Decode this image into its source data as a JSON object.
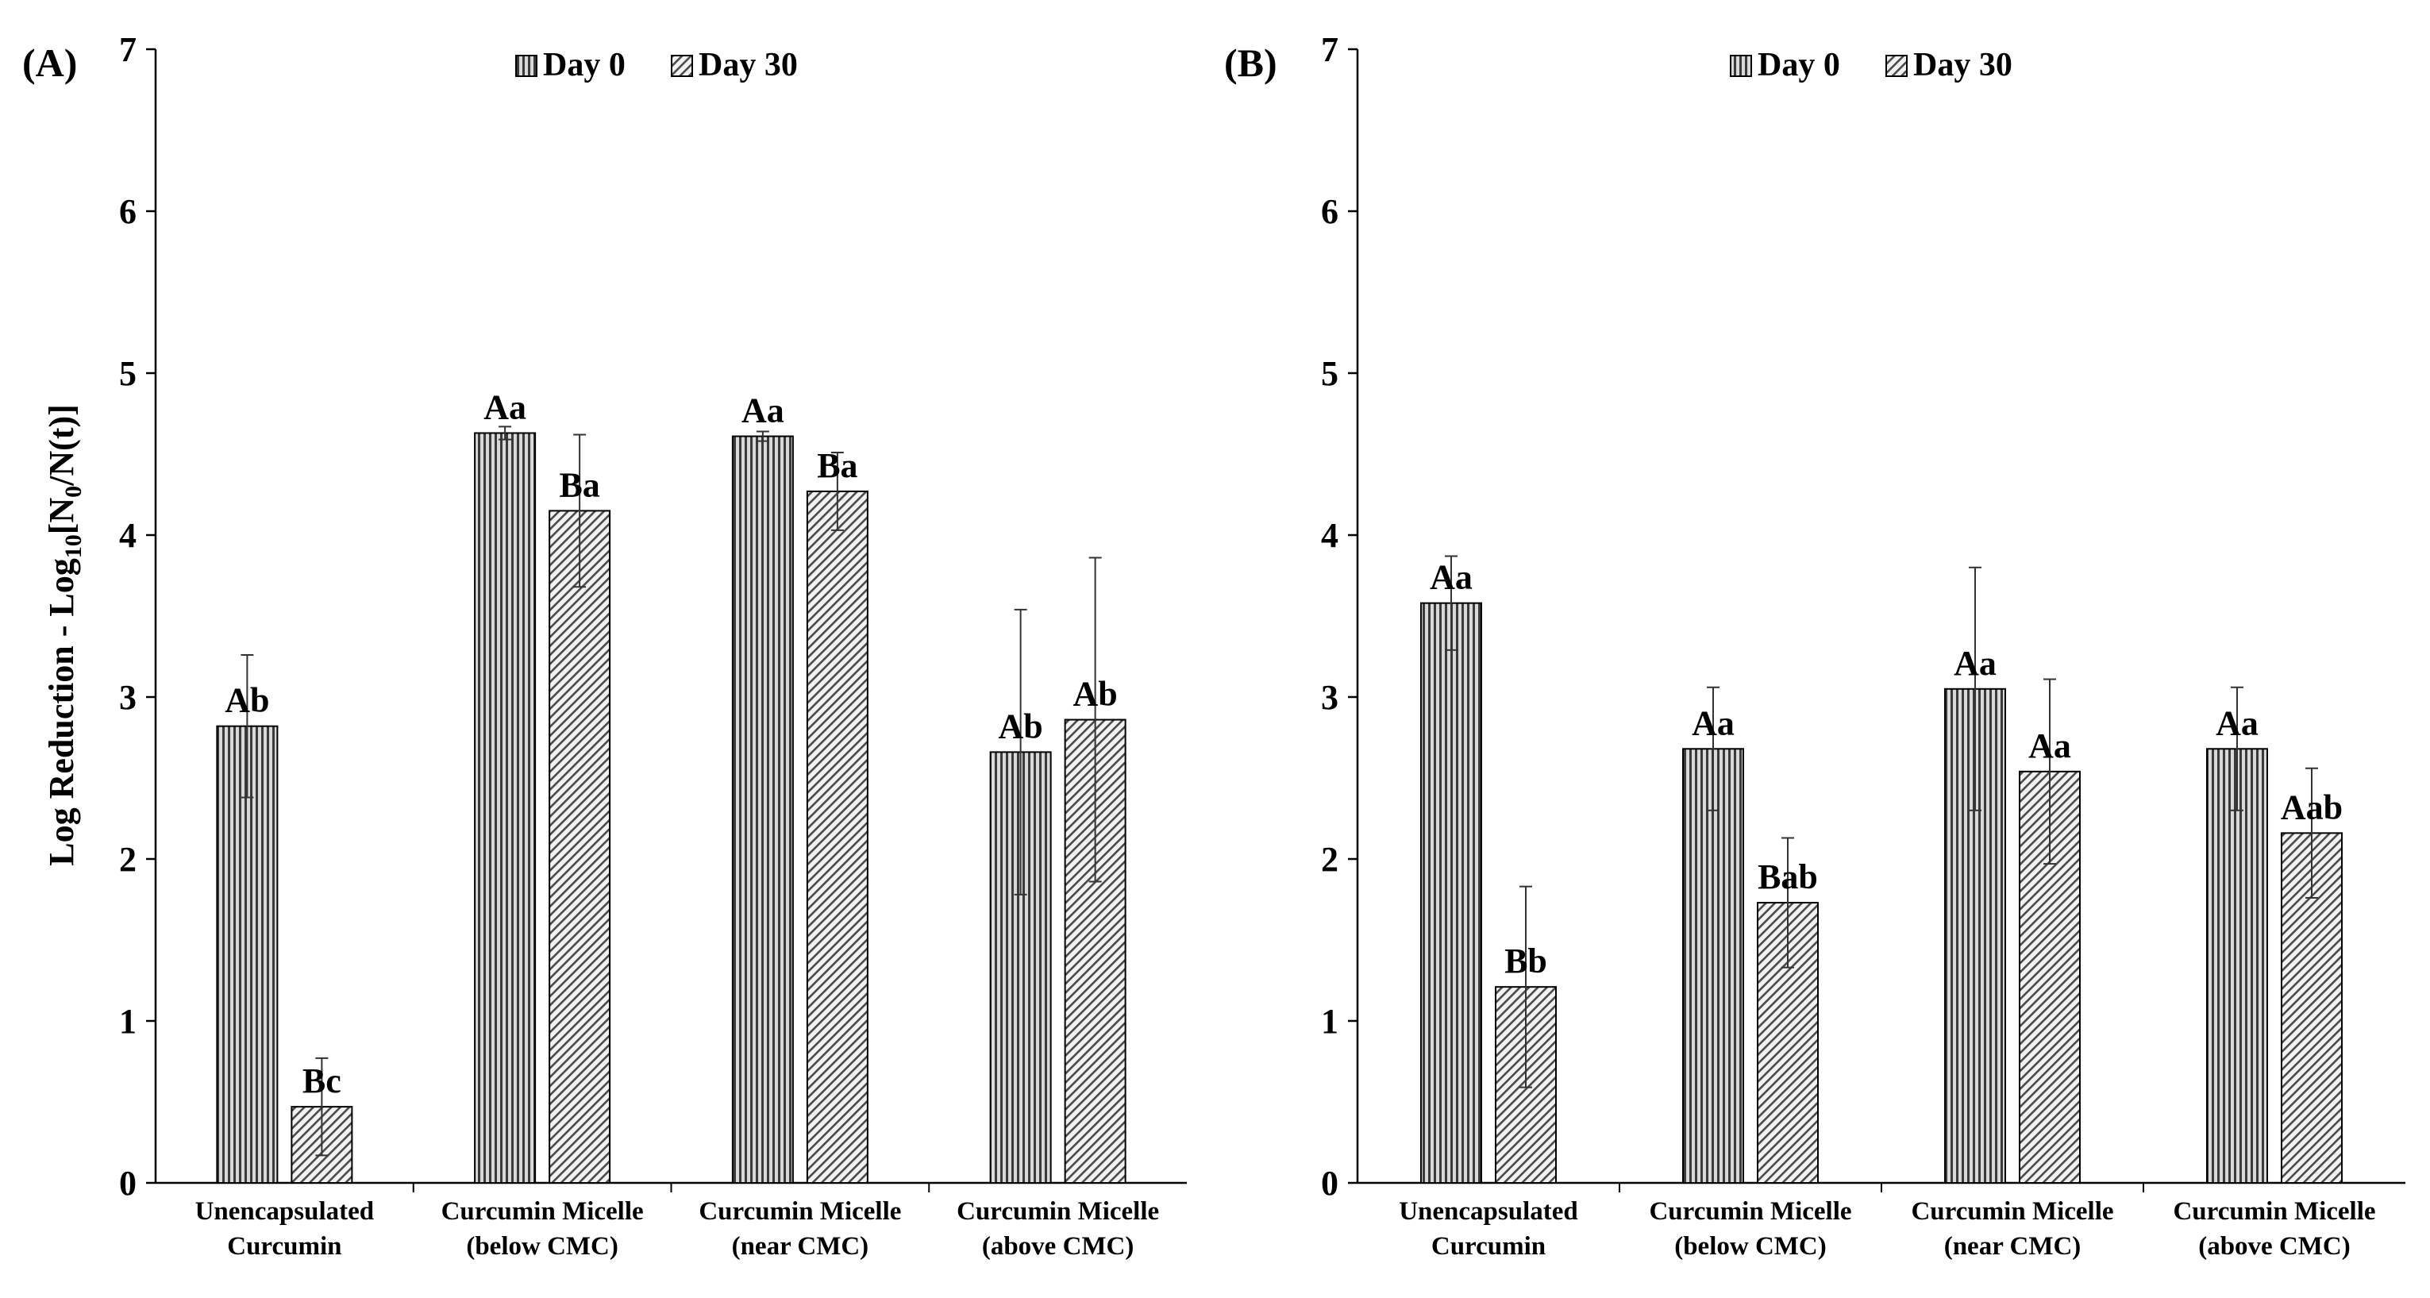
{
  "figure": {
    "ylabel": {
      "main": "Log Reduction - Log",
      "sub1": "10",
      "bracket_open": "[N",
      "sub2": "0",
      "rest": "/N(t)]"
    }
  },
  "chart_data": [
    {
      "type": "bar",
      "panel_label": "(A)",
      "categories": [
        [
          "Unencapsulated",
          "Curcumin"
        ],
        [
          "Curcumin Micelle",
          "(below CMC)"
        ],
        [
          "Curcumin Micelle",
          "(near CMC)"
        ],
        [
          "Curcumin Micelle",
          "(above CMC)"
        ]
      ],
      "series": [
        {
          "name": "Day 0",
          "pattern": "vertical",
          "values": [
            2.82,
            4.63,
            4.61,
            2.66
          ],
          "errors": [
            0.44,
            0.04,
            0.03,
            0.88
          ],
          "letters": [
            "Ab",
            "Aa",
            "Aa",
            "Ab"
          ]
        },
        {
          "name": "Day 30",
          "pattern": "diagonal",
          "values": [
            0.47,
            4.15,
            4.27,
            2.86
          ],
          "errors": [
            0.3,
            0.47,
            0.24,
            1.0
          ],
          "letters": [
            "Bc",
            "Ba",
            "Ba",
            "Ab"
          ]
        }
      ],
      "ylim": [
        0,
        7
      ],
      "yticks": [
        0,
        1,
        2,
        3,
        4,
        5,
        6,
        7
      ],
      "legend": "top-center"
    },
    {
      "type": "bar",
      "panel_label": "(B)",
      "categories": [
        [
          "Unencapsulated",
          "Curcumin"
        ],
        [
          "Curcumin Micelle",
          "(below CMC)"
        ],
        [
          "Curcumin Micelle",
          "(near CMC)"
        ],
        [
          "Curcumin Micelle",
          "(above CMC)"
        ]
      ],
      "series": [
        {
          "name": "Day 0",
          "pattern": "vertical",
          "values": [
            3.58,
            2.68,
            3.05,
            2.68
          ],
          "errors": [
            0.29,
            0.38,
            0.75,
            0.38
          ],
          "letters": [
            "Aa",
            "Aa",
            "Aa",
            "Aa"
          ]
        },
        {
          "name": "Day 30",
          "pattern": "diagonal",
          "values": [
            1.21,
            1.73,
            2.54,
            2.16
          ],
          "errors": [
            0.62,
            0.4,
            0.57,
            0.4
          ],
          "letters": [
            "Bb",
            "Bab",
            "Aa",
            "Aab"
          ]
        }
      ],
      "ylim": [
        0,
        7
      ],
      "yticks": [
        0,
        1,
        2,
        3,
        4,
        5,
        6,
        7
      ],
      "legend": "top-center"
    }
  ]
}
